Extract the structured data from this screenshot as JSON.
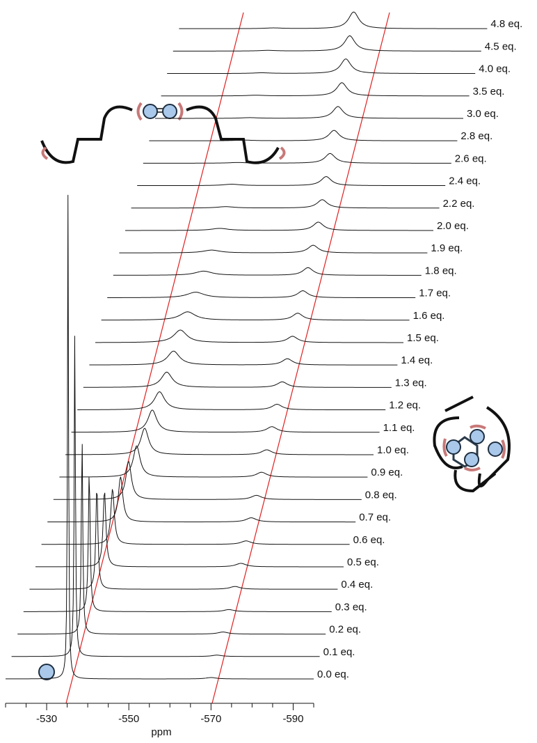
{
  "chart_data": {
    "type": "stacked-spectra",
    "xlabel": "ppm",
    "xlim": [
      -520,
      -595
    ],
    "xticks": [
      -530,
      -550,
      -570,
      -590
    ],
    "xminor": [
      -520,
      -525,
      -535,
      -540,
      -545,
      -555,
      -560,
      -565,
      -575,
      -580,
      -585,
      -595
    ],
    "color": "#111111",
    "series": [
      {
        "name": "0.0 eq.",
        "peaks": [
          [
            -535.2,
            700,
            0.3
          ],
          [
            -570,
            2,
            3
          ]
        ]
      },
      {
        "name": "0.1 eq.",
        "peaks": [
          [
            -535.4,
            470,
            0.35
          ],
          [
            -570,
            2,
            3
          ]
        ]
      },
      {
        "name": "0.2 eq.",
        "peaks": [
          [
            -535.7,
            290,
            0.4
          ],
          [
            -570,
            3,
            3
          ]
        ]
      },
      {
        "name": "0.3 eq.",
        "peaks": [
          [
            -536,
            205,
            0.5
          ],
          [
            -570,
            3,
            3
          ]
        ]
      },
      {
        "name": "0.4 eq.",
        "peaks": [
          [
            -536.4,
            150,
            0.6
          ],
          [
            -570,
            4,
            3
          ]
        ]
      },
      {
        "name": "0.5 eq.",
        "peaks": [
          [
            -536.8,
            110,
            0.8
          ],
          [
            -570,
            5,
            3
          ]
        ]
      },
      {
        "name": "0.6 eq.",
        "peaks": [
          [
            -537.3,
            80,
            1.0
          ],
          [
            -569.8,
            5,
            3
          ]
        ]
      },
      {
        "name": "0.7 eq.",
        "peaks": [
          [
            -537.8,
            65,
            1.3
          ],
          [
            -569.6,
            6,
            3
          ]
        ]
      },
      {
        "name": "0.8 eq.",
        "peaks": [
          [
            -538.3,
            55,
            1.6
          ],
          [
            -569.4,
            6,
            3
          ]
        ]
      },
      {
        "name": "0.9 eq.",
        "peaks": [
          [
            -538.8,
            45,
            2.0
          ],
          [
            -569.2,
            7,
            3
          ]
        ]
      },
      {
        "name": "1.0 eq.",
        "peaks": [
          [
            -539.3,
            38,
            2.3
          ],
          [
            -569,
            7,
            3
          ]
        ]
      },
      {
        "name": "1.1 eq.",
        "peaks": [
          [
            -539.7,
            32,
            2.6
          ],
          [
            -568.8,
            8,
            3
          ]
        ]
      },
      {
        "name": "1.2 eq.",
        "peaks": [
          [
            -540,
            26,
            3
          ],
          [
            -568.6,
            8,
            3
          ]
        ]
      },
      {
        "name": "1.3 eq.",
        "peaks": [
          [
            -540.3,
            22,
            3.2
          ],
          [
            -568.4,
            8,
            3
          ]
        ]
      },
      {
        "name": "1.4 eq.",
        "peaks": [
          [
            -540.5,
            20,
            3.5
          ],
          [
            -568.2,
            9,
            3
          ]
        ]
      },
      {
        "name": "1.5 eq.",
        "peaks": [
          [
            -540.7,
            18,
            3.8
          ],
          [
            -568,
            9,
            3
          ]
        ]
      },
      {
        "name": "1.6 eq.",
        "peaks": [
          [
            -541,
            12,
            4.5
          ],
          [
            -567.8,
            10,
            3
          ]
        ]
      },
      {
        "name": "1.7 eq.",
        "peaks": [
          [
            -541.5,
            8,
            5
          ],
          [
            -567.6,
            10,
            3
          ]
        ]
      },
      {
        "name": "1.8 eq.",
        "peaks": [
          [
            -542,
            6,
            5
          ],
          [
            -567.4,
            11,
            3
          ]
        ]
      },
      {
        "name": "1.9 eq.",
        "peaks": [
          [
            -542.5,
            4,
            5
          ],
          [
            -567.2,
            11,
            3
          ]
        ]
      },
      {
        "name": "2.0 eq.",
        "peaks": [
          [
            -543,
            3,
            5
          ],
          [
            -567,
            12,
            3
          ]
        ]
      },
      {
        "name": "2.2 eq.",
        "peaks": [
          [
            -543,
            2,
            5
          ],
          [
            -566.5,
            12,
            3
          ]
        ]
      },
      {
        "name": "2.4 eq.",
        "peaks": [
          [
            -543,
            2,
            5
          ],
          [
            -566,
            13,
            3
          ]
        ]
      },
      {
        "name": "2.6 eq.",
        "peaks": [
          [
            -543,
            1,
            5
          ],
          [
            -565.5,
            14,
            3
          ]
        ]
      },
      {
        "name": "2.8 eq.",
        "peaks": [
          [
            -543,
            1,
            5
          ],
          [
            -565,
            15,
            3
          ]
        ]
      },
      {
        "name": "3.0 eq.",
        "peaks": [
          [
            -543,
            1,
            5
          ],
          [
            -564.5,
            17,
            3
          ]
        ]
      },
      {
        "name": "3.5 eq.",
        "peaks": [
          [
            -543,
            1,
            5
          ],
          [
            -564,
            19,
            3
          ]
        ]
      },
      {
        "name": "4.0 eq.",
        "peaks": [
          [
            -543,
            1,
            5
          ],
          [
            -563.5,
            21,
            3
          ]
        ]
      },
      {
        "name": "4.5 eq.",
        "peaks": [
          [
            -543,
            1,
            5
          ],
          [
            -563,
            22,
            3
          ]
        ]
      },
      {
        "name": "4.8 eq.",
        "peaks": [
          [
            -543,
            1,
            5
          ],
          [
            -562.5,
            24,
            3
          ]
        ]
      }
    ]
  }
}
